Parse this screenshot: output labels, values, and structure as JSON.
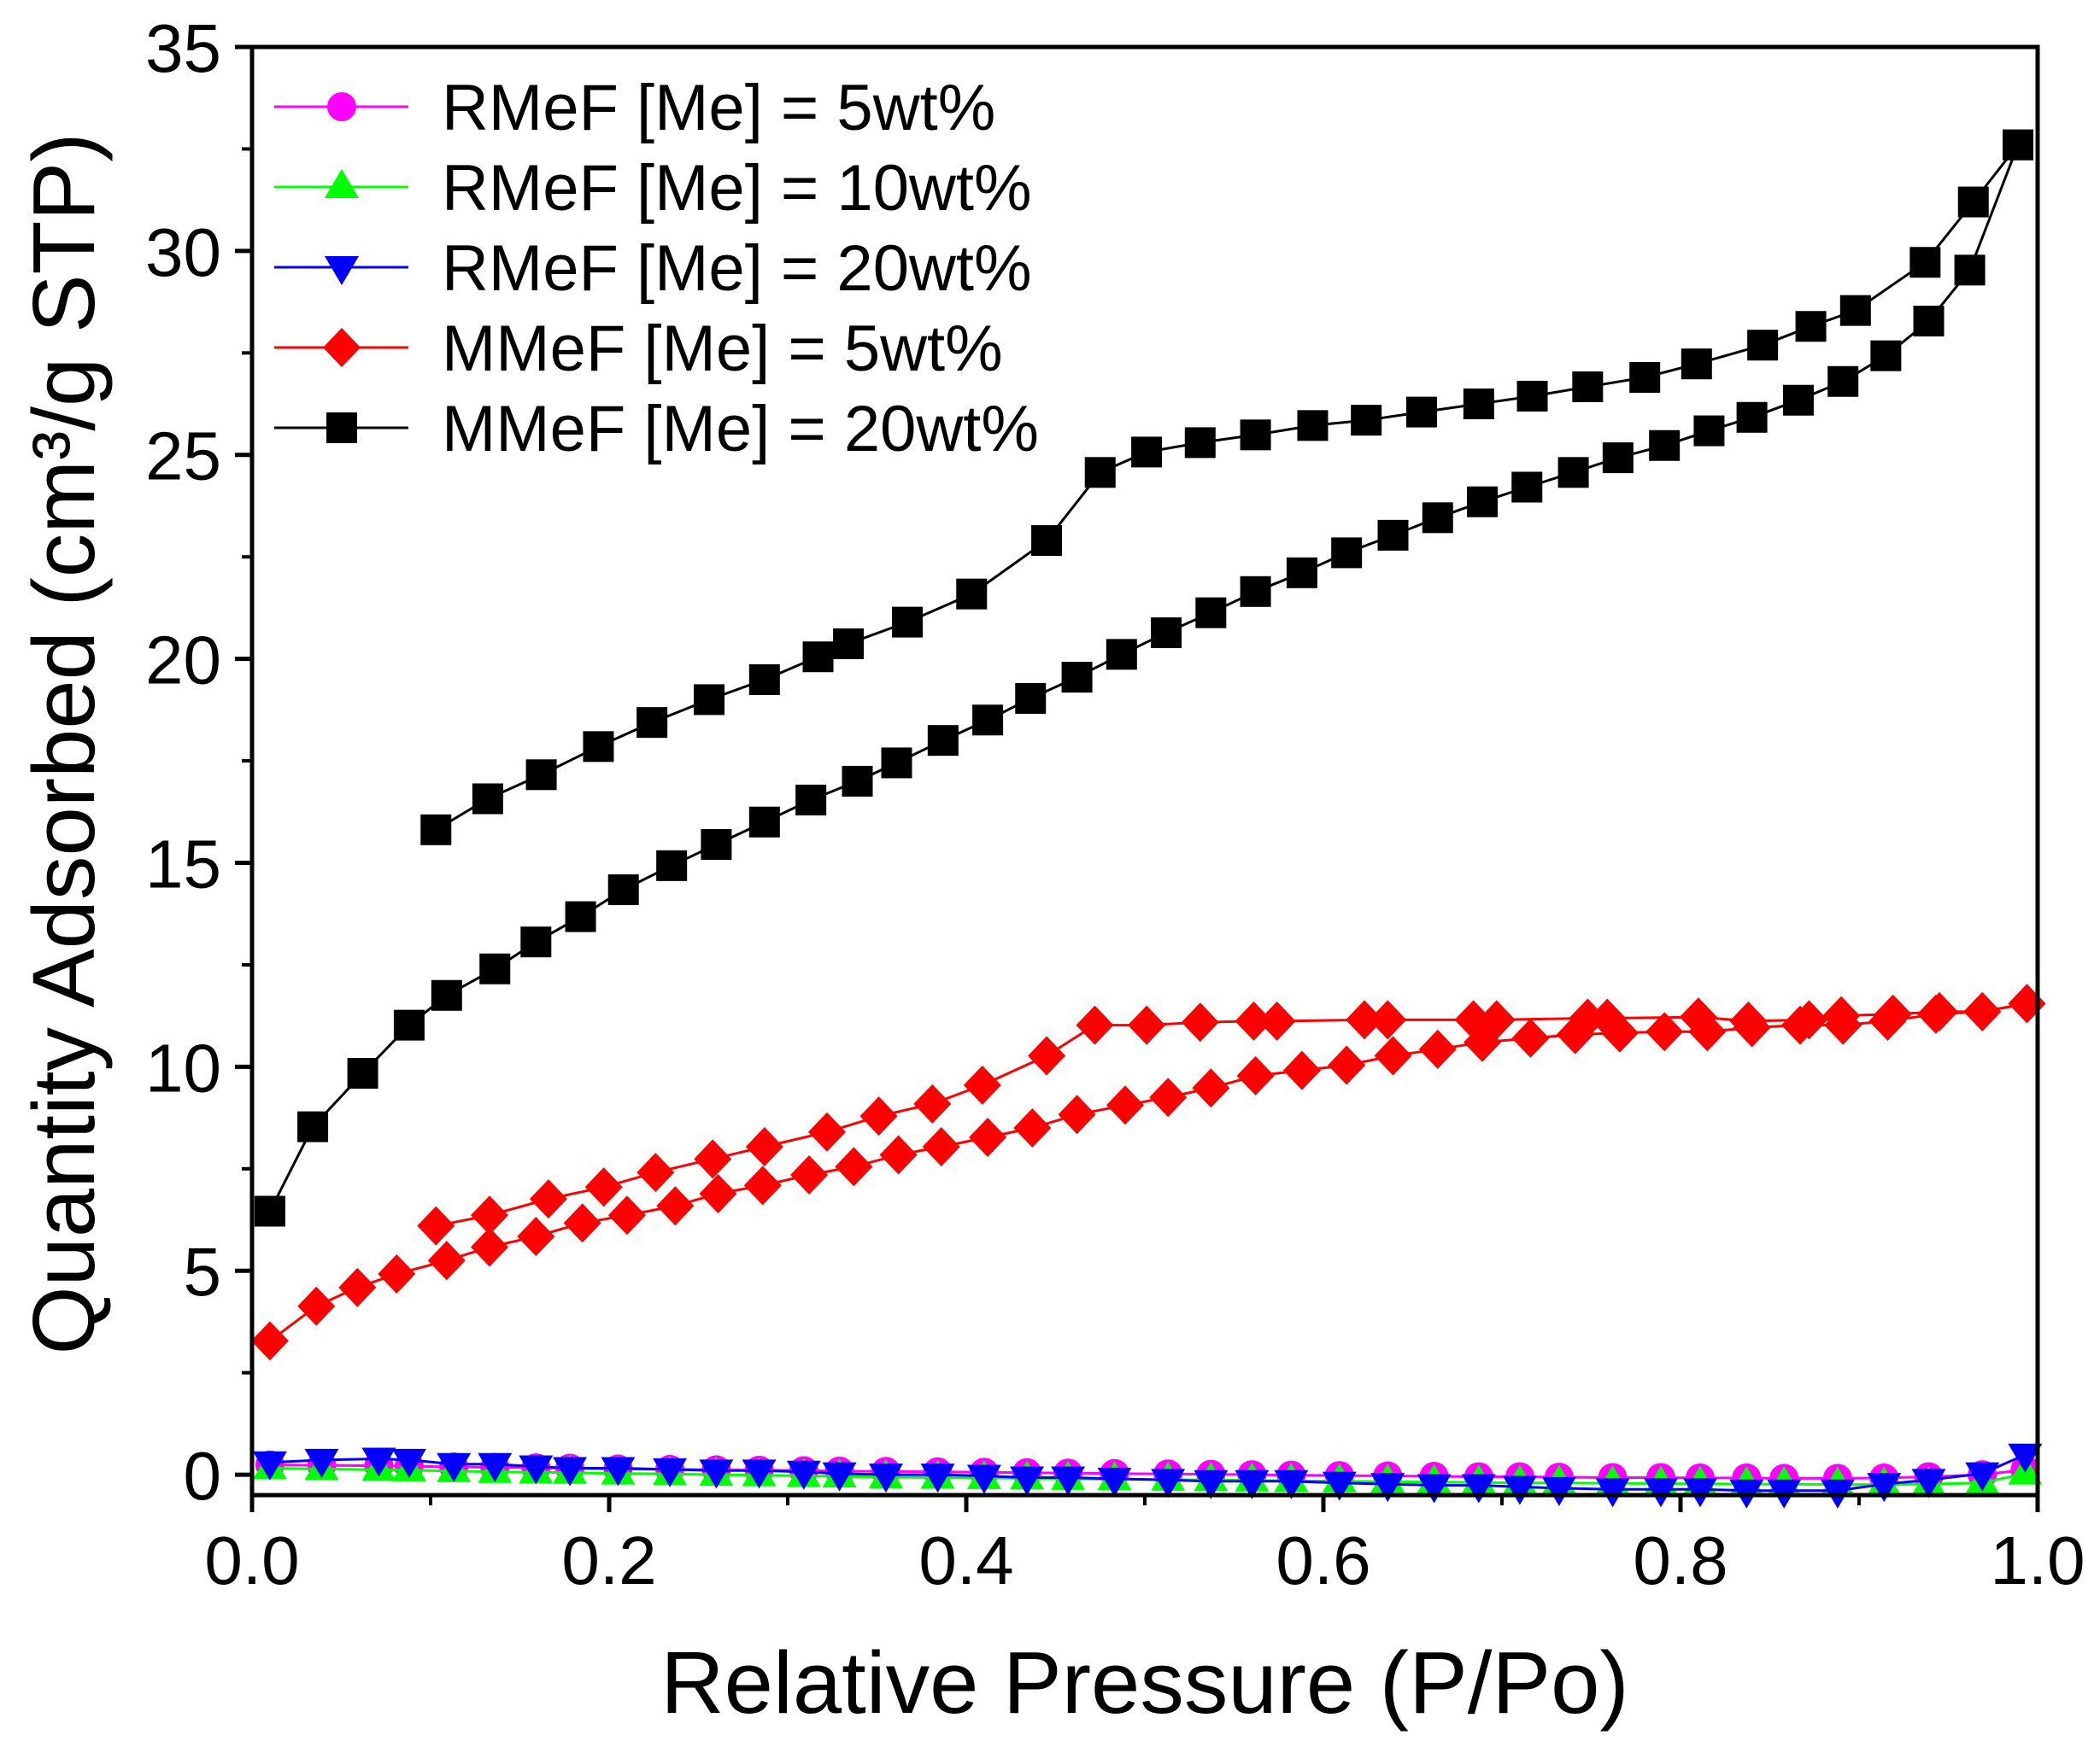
{
  "chart_data": {
    "type": "line",
    "xlabel": "Relative Pressure (P/Po)",
    "ylabel": "Quantity Adsorbed (cm³/g STP)",
    "xlim": [
      0,
      1.0
    ],
    "ylim": [
      -0.5,
      35
    ],
    "xticks": [
      0,
      0.2,
      0.4,
      0.6,
      0.8,
      1.0
    ],
    "xtick_labels": [
      "0.0",
      "0.2",
      "0.4",
      "0.6",
      "0.8",
      "1.0"
    ],
    "yticks": [
      0,
      5,
      10,
      15,
      20,
      25,
      30,
      35
    ],
    "ytick_labels": [
      "0",
      "5",
      "10",
      "15",
      "20",
      "25",
      "30",
      "35"
    ],
    "grid": false,
    "legend_position": "top-left",
    "series": [
      {
        "name": "RMeF [Me] = 5wt%",
        "color": "#ff00ff",
        "marker": "circle",
        "branches": [
          {
            "x": [
              0.01,
              0.039,
              0.071,
              0.088,
              0.113,
              0.136,
              0.159,
              0.178,
              0.205,
              0.234,
              0.26,
              0.284,
              0.309,
              0.329,
              0.355,
              0.384,
              0.41,
              0.434,
              0.457,
              0.483,
              0.513,
              0.537,
              0.56,
              0.582,
              0.609,
              0.636,
              0.662,
              0.687,
              0.71,
              0.732,
              0.762,
              0.789,
              0.811,
              0.837,
              0.858,
              0.888,
              0.914,
              0.939,
              0.969,
              0.993
            ],
            "y": [
              0.24,
              0.23,
              0.22,
              0.21,
              0.19,
              0.18,
              0.17,
              0.16,
              0.14,
              0.13,
              0.12,
              0.11,
              0.1,
              0.09,
              0.08,
              0.07,
              0.06,
              0.05,
              0.04,
              0.03,
              0.02,
              0.01,
              0.0,
              -0.01,
              -0.02,
              -0.03,
              -0.04,
              -0.05,
              -0.05,
              -0.06,
              -0.07,
              -0.07,
              -0.08,
              -0.08,
              -0.09,
              -0.09,
              -0.08,
              -0.05,
              0.0,
              0.12
            ]
          }
        ]
      },
      {
        "name": "RMeF [Me] = 10wt%",
        "color": "#00ff00",
        "marker": "triangle-up",
        "branches": [
          {
            "x": [
              0.01,
              0.039,
              0.071,
              0.088,
              0.113,
              0.136,
              0.159,
              0.178,
              0.205,
              0.234,
              0.26,
              0.284,
              0.309,
              0.329,
              0.355,
              0.384,
              0.41,
              0.434,
              0.457,
              0.483,
              0.513,
              0.537,
              0.56,
              0.582,
              0.609,
              0.636,
              0.662,
              0.687,
              0.71,
              0.732,
              0.762,
              0.789,
              0.811,
              0.837,
              0.858,
              0.888,
              0.914,
              0.939,
              0.969,
              0.993
            ],
            "y": [
              0.16,
              0.14,
              0.12,
              0.11,
              0.09,
              0.07,
              0.06,
              0.05,
              0.03,
              0.02,
              0.0,
              -0.01,
              -0.03,
              -0.04,
              -0.06,
              -0.07,
              -0.08,
              -0.09,
              -0.1,
              -0.11,
              -0.12,
              -0.13,
              -0.14,
              -0.15,
              -0.16,
              -0.17,
              -0.18,
              -0.19,
              -0.2,
              -0.2,
              -0.21,
              -0.22,
              -0.22,
              -0.23,
              -0.23,
              -0.24,
              -0.24,
              -0.23,
              -0.2,
              0.03
            ]
          }
        ]
      },
      {
        "name": "RMeF [Me] = 20wt%",
        "color": "#0000ff",
        "marker": "triangle-down",
        "branches": [
          {
            "x": [
              0.01,
              0.039,
              0.071,
              0.088,
              0.113,
              0.136,
              0.159,
              0.178,
              0.205,
              0.234,
              0.26,
              0.284,
              0.309,
              0.329,
              0.355,
              0.384,
              0.41,
              0.434,
              0.457,
              0.483,
              0.513,
              0.537,
              0.56,
              0.582,
              0.609,
              0.636,
              0.662,
              0.687,
              0.71,
              0.732,
              0.762,
              0.789,
              0.811,
              0.837,
              0.858,
              0.888,
              0.914,
              0.939,
              0.969,
              0.993
            ],
            "y": [
              0.3,
              0.36,
              0.39,
              0.36,
              0.26,
              0.26,
              0.2,
              0.16,
              0.16,
              0.13,
              0.1,
              0.1,
              0.07,
              0.03,
              0.0,
              0.0,
              -0.03,
              -0.07,
              -0.07,
              -0.1,
              -0.13,
              -0.16,
              -0.16,
              -0.16,
              -0.2,
              -0.23,
              -0.26,
              -0.26,
              -0.3,
              -0.33,
              -0.36,
              -0.36,
              -0.36,
              -0.39,
              -0.39,
              -0.39,
              -0.23,
              -0.13,
              0.03,
              0.49
            ]
          }
        ]
      },
      {
        "name": "MMeF [Me] = 5wt%",
        "color": "#ff0000",
        "marker": "diamond",
        "branches": [
          {
            "x": [
              0.01,
              0.036,
              0.059,
              0.081,
              0.109,
              0.133,
              0.159,
              0.185,
              0.21,
              0.237,
              0.261,
              0.286,
              0.312,
              0.337,
              0.362,
              0.386,
              0.412,
              0.437,
              0.462,
              0.489,
              0.513,
              0.537,
              0.562,
              0.588,
              0.613,
              0.639,
              0.664,
              0.689,
              0.716,
              0.741,
              0.766,
              0.791,
              0.815,
              0.84,
              0.867,
              0.891,
              0.916,
              0.943,
              0.969,
              0.994
            ],
            "y": [
              3.28,
              4.13,
              4.59,
              4.92,
              5.25,
              5.58,
              5.84,
              6.17,
              6.36,
              6.59,
              6.89,
              7.09,
              7.35,
              7.55,
              7.84,
              8.04,
              8.27,
              8.5,
              8.83,
              9.06,
              9.25,
              9.48,
              9.78,
              9.91,
              10.04,
              10.27,
              10.43,
              10.6,
              10.7,
              10.79,
              10.83,
              10.86,
              10.86,
              10.96,
              11.02,
              11.02,
              11.12,
              11.29,
              11.35,
              11.55
            ]
          },
          {
            "x": [
              0.994,
              0.969,
              0.945,
              0.919,
              0.89,
              0.872,
              0.838,
              0.81,
              0.759,
              0.748,
              0.697,
              0.684,
              0.636,
              0.623,
              0.574,
              0.561,
              0.531,
              0.501,
              0.472,
              0.445,
              0.409,
              0.381,
              0.351,
              0.322,
              0.287,
              0.258,
              0.226,
              0.197,
              0.166,
              0.133,
              0.103
            ],
            "y": [
              11.55,
              11.35,
              11.35,
              11.29,
              11.25,
              11.15,
              11.12,
              11.22,
              11.19,
              11.19,
              11.15,
              11.15,
              11.15,
              11.15,
              11.12,
              11.12,
              11.09,
              11.02,
              11.02,
              10.27,
              9.55,
              9.09,
              8.79,
              8.4,
              8.04,
              7.74,
              7.41,
              7.05,
              6.76,
              6.36,
              6.1
            ]
          }
        ]
      },
      {
        "name": "MMeF [Me] = 20wt%",
        "color": "#000000",
        "marker": "square",
        "branches": [
          {
            "x": [
              0.01,
              0.034,
              0.062,
              0.088,
              0.109,
              0.136,
              0.159,
              0.184,
              0.208,
              0.235,
              0.26,
              0.287,
              0.313,
              0.339,
              0.361,
              0.387,
              0.412,
              0.436,
              0.462,
              0.487,
              0.512,
              0.537,
              0.562,
              0.588,
              0.613,
              0.639,
              0.664,
              0.689,
              0.714,
              0.74,
              0.765,
              0.791,
              0.816,
              0.84,
              0.866,
              0.891,
              0.915,
              0.939,
              0.962,
              0.989
            ],
            "y": [
              6.46,
              8.53,
              9.84,
              11.02,
              11.75,
              12.4,
              13.06,
              13.68,
              14.34,
              14.93,
              15.45,
              16.0,
              16.54,
              17.0,
              17.45,
              18.0,
              18.5,
              19.03,
              19.55,
              20.11,
              20.64,
              21.13,
              21.65,
              22.11,
              22.6,
              23.03,
              23.46,
              23.85,
              24.21,
              24.57,
              24.93,
              25.23,
              25.59,
              25.92,
              26.34,
              26.8,
              27.43,
              28.28,
              29.53,
              32.6
            ]
          },
          {
            "x": [
              0.989,
              0.964,
              0.937,
              0.898,
              0.873,
              0.846,
              0.809,
              0.78,
              0.748,
              0.717,
              0.687,
              0.655,
              0.624,
              0.594,
              0.562,
              0.531,
              0.501,
              0.475,
              0.445,
              0.403,
              0.367,
              0.334,
              0.317,
              0.287,
              0.256,
              0.224,
              0.194,
              0.162,
              0.132,
              0.103
            ],
            "y": [
              32.6,
              31.2,
              29.72,
              28.54,
              28.15,
              27.69,
              27.23,
              26.9,
              26.67,
              26.44,
              26.25,
              26.05,
              25.85,
              25.72,
              25.49,
              25.3,
              25.07,
              24.57,
              22.9,
              21.59,
              20.9,
              20.37,
              20.05,
              19.49,
              19.0,
              18.44,
              17.85,
              17.16,
              16.57,
              15.81
            ]
          }
        ]
      }
    ]
  }
}
